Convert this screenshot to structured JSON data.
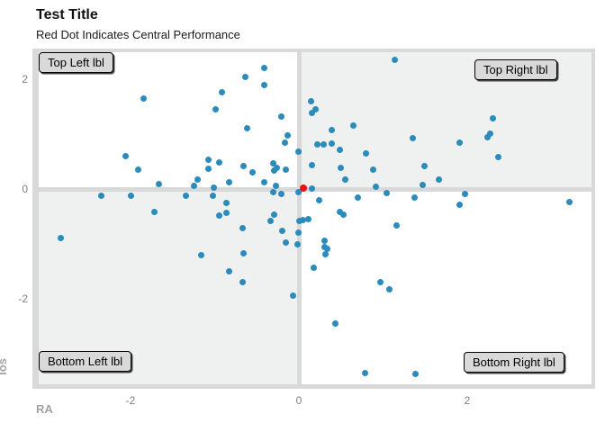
{
  "header": {
    "title": "Test Title",
    "subtitle": "Red Dot Indicates Central Performance"
  },
  "quadrant_labels": {
    "top_left": "Top Left lbl",
    "top_right": "Top Right lbl",
    "bottom_left": "Bottom Left lbl",
    "bottom_right": "Bottom Right lbl"
  },
  "colors": {
    "point": "#2b8cbb",
    "center_point": "#ee1111",
    "frame_and_reflines": "#d9d9d9",
    "label_box_bg": "#d9d9d9",
    "shaded_quadrant": "#eef1f0",
    "unshaded_quadrant": "#ffffff",
    "tick_text": "#7f7f7f",
    "axis_title_text": "#a3a3a3"
  },
  "chart_data": {
    "type": "scatter",
    "title": "Test Title",
    "subtitle": "Red Dot Indicates Central Performance",
    "xlabel": "RA",
    "ylabel": "los",
    "xlim": [
      -3.1,
      3.5
    ],
    "ylim": [
      -3.6,
      2.55
    ],
    "x_ticks": [
      -2,
      0,
      2
    ],
    "y_ticks": [
      2,
      0,
      -2
    ],
    "grid": false,
    "reference_lines": {
      "vertical_x": 0,
      "horizontal_y": 0
    },
    "shaded_quadrants": [
      "top_right",
      "bottom_left"
    ],
    "series": [
      {
        "name": "performance-points",
        "color": "#2b8cbb",
        "marker_px": 7,
        "points": [
          [
            -1.85,
            1.65
          ],
          [
            -0.91,
            1.77
          ],
          [
            -0.64,
            2.04
          ],
          [
            -0.41,
            2.2
          ],
          [
            -0.41,
            1.9
          ],
          [
            -0.99,
            1.45
          ],
          [
            -0.21,
            1.32
          ],
          [
            -0.61,
            1.1
          ],
          [
            -0.13,
            0.97
          ],
          [
            -0.17,
            0.85
          ],
          [
            -0.01,
            0.68
          ],
          [
            -2.06,
            0.6
          ],
          [
            -1.08,
            0.53
          ],
          [
            -0.95,
            0.48
          ],
          [
            -1.08,
            0.37
          ],
          [
            -0.66,
            0.41
          ],
          [
            -0.3,
            0.47
          ],
          [
            -0.26,
            0.39
          ],
          [
            -0.29,
            0.33
          ],
          [
            -0.16,
            0.35
          ],
          [
            -1.91,
            0.35
          ],
          [
            -0.55,
            0.3
          ],
          [
            -1.66,
            0.09
          ],
          [
            -1.25,
            0.05
          ],
          [
            -1.2,
            0.17
          ],
          [
            -1.01,
            0.03
          ],
          [
            -0.83,
            0.12
          ],
          [
            -0.41,
            0.12
          ],
          [
            -0.27,
            0.05
          ],
          [
            1.14,
            2.36
          ],
          [
            0.14,
            1.6
          ],
          [
            0.15,
            1.39
          ],
          [
            0.2,
            1.45
          ],
          [
            2.3,
            1.29
          ],
          [
            0.39,
            1.07
          ],
          [
            0.65,
            1.15
          ],
          [
            1.35,
            0.93
          ],
          [
            1.91,
            0.84
          ],
          [
            2.24,
            0.94
          ],
          [
            2.27,
            1.01
          ],
          [
            0.22,
            0.81
          ],
          [
            0.29,
            0.81
          ],
          [
            0.39,
            0.83
          ],
          [
            0.49,
            0.71
          ],
          [
            0.8,
            0.64
          ],
          [
            0.16,
            0.43
          ],
          [
            0.5,
            0.39
          ],
          [
            0.88,
            0.36
          ],
          [
            1.49,
            0.42
          ],
          [
            2.37,
            0.59
          ],
          [
            0.55,
            0.17
          ],
          [
            1.66,
            0.17
          ],
          [
            0.91,
            0.04
          ],
          [
            1.47,
            0.07
          ],
          [
            0.16,
            0.01
          ],
          [
            -2.35,
            -0.12
          ],
          [
            -2.0,
            -0.13
          ],
          [
            -1.72,
            -0.41
          ],
          [
            -2.83,
            -0.89
          ],
          [
            -1.34,
            -0.13
          ],
          [
            -1.02,
            -0.12
          ],
          [
            -0.86,
            -0.26
          ],
          [
            -0.95,
            -0.49
          ],
          [
            -0.86,
            -0.43
          ],
          [
            -1.16,
            -1.21
          ],
          [
            -0.83,
            -1.5
          ],
          [
            -0.67,
            -0.72
          ],
          [
            -0.66,
            -1.18
          ],
          [
            -0.67,
            -1.7
          ],
          [
            -0.3,
            -0.05
          ],
          [
            -0.21,
            -0.09
          ],
          [
            -0.29,
            -0.46
          ],
          [
            -0.34,
            -0.58
          ],
          [
            -0.2,
            -0.77
          ],
          [
            -0.16,
            -0.98
          ],
          [
            -0.07,
            -1.94
          ],
          [
            -0.01,
            -0.06
          ],
          [
            0.0,
            -0.59
          ],
          [
            -0.01,
            -0.8
          ],
          [
            -0.02,
            -1.01
          ],
          [
            0.24,
            -0.21
          ],
          [
            0.7,
            -0.15
          ],
          [
            1.04,
            -0.08
          ],
          [
            1.37,
            -0.15
          ],
          [
            1.97,
            -0.09
          ],
          [
            1.91,
            -0.28
          ],
          [
            3.21,
            -0.24
          ],
          [
            0.49,
            -0.41
          ],
          [
            0.53,
            -0.47
          ],
          [
            0.05,
            -0.57
          ],
          [
            0.11,
            -0.55
          ],
          [
            1.16,
            -0.67
          ],
          [
            0.31,
            -0.95
          ],
          [
            0.3,
            -1.05
          ],
          [
            0.34,
            -1.09
          ],
          [
            0.32,
            -1.19
          ],
          [
            0.18,
            -1.43
          ],
          [
            0.97,
            -1.7
          ],
          [
            1.08,
            -1.82
          ],
          [
            0.43,
            -2.45
          ],
          [
            0.79,
            -3.36
          ],
          [
            1.38,
            -3.37
          ]
        ]
      },
      {
        "name": "central-performance-point",
        "color": "#ee1111",
        "marker_px": 8,
        "points": [
          [
            0.05,
            0.02
          ]
        ]
      }
    ]
  }
}
